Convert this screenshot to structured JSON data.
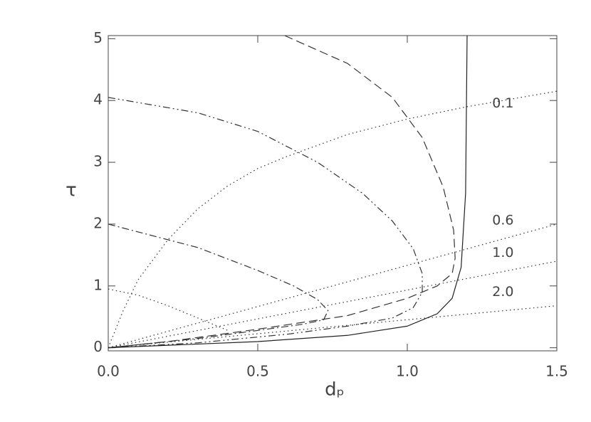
{
  "chart_data": {
    "type": "line",
    "x_label": "dₚ",
    "y_label": "τ",
    "xlim": [
      0,
      1.5
    ],
    "ylim": [
      -0.05,
      5.05
    ],
    "xticks": [
      {
        "value": 0,
        "label": "0.0"
      },
      {
        "value": 0.5,
        "label": "0.5"
      },
      {
        "value": 1,
        "label": "1.0"
      },
      {
        "value": 1.5,
        "label": "1.5"
      }
    ],
    "yticks": [
      0,
      1,
      2,
      3,
      4,
      5
    ],
    "series": [
      {
        "name": "0.1",
        "style": "dotted",
        "color": "#333333",
        "x": [
          0,
          0.05,
          0.1,
          0.2,
          0.3,
          0.4,
          0.5,
          0.6,
          0.8,
          1.0,
          1.2,
          1.5
        ],
        "values": [
          0,
          0.6,
          1.1,
          1.75,
          2.25,
          2.62,
          2.9,
          3.1,
          3.45,
          3.7,
          3.9,
          4.15
        ]
      },
      {
        "name": "0.6",
        "style": "dotted",
        "color": "#333333",
        "x": [
          0,
          1.5
        ],
        "values": [
          0,
          2.0
        ]
      },
      {
        "name": "1.0",
        "style": "dotted",
        "color": "#333333",
        "x": [
          0,
          1.5
        ],
        "values": [
          0,
          1.4
        ]
      },
      {
        "name": "2.0",
        "style": "dotted",
        "color": "#333333",
        "x": [
          0,
          1.5
        ],
        "values": [
          0,
          0.68
        ]
      },
      {
        "style": "dotted",
        "color": "#333333",
        "x": [
          0,
          0.1,
          0.2,
          0.3,
          0.4
        ],
        "values": [
          0.95,
          0.85,
          0.68,
          0.48,
          0.28
        ]
      },
      {
        "style": "dashdotdot",
        "color": "#333333",
        "x": [
          0,
          0.3,
          0.5,
          0.7,
          0.85,
          0.95,
          1.02,
          1.05,
          1.05,
          1.02,
          0.95,
          0.8,
          0.6,
          0.3,
          0
        ],
        "values": [
          4.05,
          3.8,
          3.5,
          3.0,
          2.5,
          2.05,
          1.6,
          1.2,
          0.9,
          0.65,
          0.48,
          0.35,
          0.22,
          0.08,
          0
        ]
      },
      {
        "style": "dashdot",
        "color": "#333333",
        "x": [
          0,
          0.3,
          0.5,
          0.62,
          0.7,
          0.735,
          0.72,
          0.65,
          0.5,
          0.3,
          0
        ],
        "values": [
          2.0,
          1.62,
          1.25,
          1.0,
          0.78,
          0.6,
          0.45,
          0.38,
          0.28,
          0.15,
          0
        ]
      },
      {
        "style": "dashed",
        "color": "#333333",
        "x": [
          0.59,
          0.8,
          0.95,
          1.05,
          1.12,
          1.155,
          1.16,
          1.15,
          1.1,
          1.0,
          0.8,
          0.5,
          0.2,
          0
        ],
        "values": [
          5.05,
          4.6,
          4.05,
          3.4,
          2.6,
          1.9,
          1.45,
          1.2,
          1.0,
          0.8,
          0.52,
          0.3,
          0.1,
          0
        ]
      },
      {
        "style": "solid",
        "color": "#222222",
        "x": [
          0,
          0.5,
          0.8,
          1.0,
          1.1,
          1.15,
          1.18,
          1.195,
          1.2
        ],
        "values": [
          0,
          0.1,
          0.2,
          0.35,
          0.55,
          0.8,
          1.3,
          2.5,
          5.05
        ]
      }
    ]
  }
}
